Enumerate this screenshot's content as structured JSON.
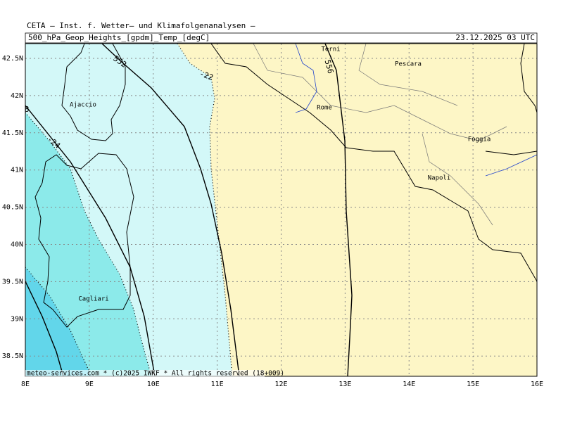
{
  "header": {
    "institute": "CETA — Inst. f. Wetter— und Klimafolgenanalysen —",
    "field": "500_hPa_Geop_Heights_[gpdm]_Temp_[degC]",
    "valid_time": "23.12.2025 03 UTC"
  },
  "map": {
    "lat_labels": [
      "42.5N",
      "42N",
      "41.5N",
      "41N",
      "40.5N",
      "40N",
      "39.5N",
      "39N",
      "38.5N"
    ],
    "lon_labels": [
      "8E",
      "9E",
      "10E",
      "11E",
      "12E",
      "13E",
      "14E",
      "15E",
      "16E"
    ],
    "cities": [
      "Terni",
      "Pescara",
      "Ajaccio",
      "Rome",
      "Foggia",
      "Napoli",
      "Cagliari"
    ],
    "contour_labels": [
      "552",
      "556",
      "-22",
      "-24",
      "8"
    ]
  },
  "footer": {
    "credit": "meteo-services.com * (c)2025 IWKF * All rights reserved (18+009)"
  }
}
